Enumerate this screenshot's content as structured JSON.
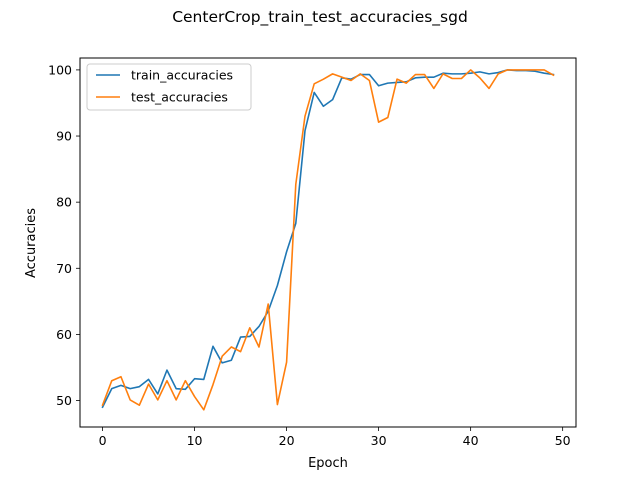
{
  "chart_data": {
    "type": "line",
    "title": "CenterCrop_train_test_accuracies_sgd",
    "xlabel": "Epoch",
    "ylabel": "Accuracies",
    "xlim": [
      -2.45,
      51.45
    ],
    "ylim": [
      46.0,
      101.8
    ],
    "xticks": [
      0,
      10,
      20,
      30,
      40,
      50
    ],
    "yticks": [
      50,
      60,
      70,
      80,
      90,
      100
    ],
    "grid": false,
    "legend_position": "upper left",
    "x": [
      0,
      1,
      2,
      3,
      4,
      5,
      6,
      7,
      8,
      9,
      10,
      11,
      12,
      13,
      14,
      15,
      16,
      17,
      18,
      19,
      20,
      21,
      22,
      23,
      24,
      25,
      26,
      27,
      28,
      29,
      30,
      31,
      32,
      33,
      34,
      35,
      36,
      37,
      38,
      39,
      40,
      41,
      42,
      43,
      44,
      45,
      46,
      47,
      48,
      49
    ],
    "series": [
      {
        "name": "train_accuracies",
        "color": "#1f77b4",
        "values": [
          49.0,
          51.8,
          52.3,
          51.8,
          52.1,
          53.2,
          51.0,
          54.6,
          51.8,
          51.7,
          53.3,
          53.2,
          58.2,
          55.7,
          56.1,
          59.6,
          59.7,
          61.2,
          63.5,
          67.4,
          72.5,
          76.8,
          90.8,
          96.6,
          94.5,
          95.5,
          98.8,
          98.6,
          99.3,
          99.3,
          97.6,
          98.0,
          98.1,
          98.2,
          98.8,
          98.9,
          98.9,
          99.5,
          99.4,
          99.4,
          99.5,
          99.7,
          99.4,
          99.6,
          100.0,
          99.9,
          99.9,
          99.8,
          99.5,
          99.3
        ]
      },
      {
        "name": "test_accuracies",
        "color": "#ff7f0e",
        "values": [
          49.3,
          53.0,
          53.6,
          50.1,
          49.3,
          52.5,
          50.1,
          53.0,
          50.1,
          53.0,
          50.6,
          48.6,
          52.4,
          56.7,
          58.1,
          57.4,
          61.0,
          58.1,
          64.6,
          49.4,
          55.8,
          82.7,
          93.0,
          97.9,
          98.6,
          99.4,
          98.9,
          98.4,
          99.4,
          98.4,
          92.1,
          92.8,
          98.6,
          98.0,
          99.3,
          99.3,
          97.2,
          99.4,
          98.7,
          98.7,
          100.0,
          98.8,
          97.2,
          99.4,
          100.0,
          100.0,
          100.0,
          100.0,
          100.0,
          99.2
        ]
      }
    ]
  }
}
